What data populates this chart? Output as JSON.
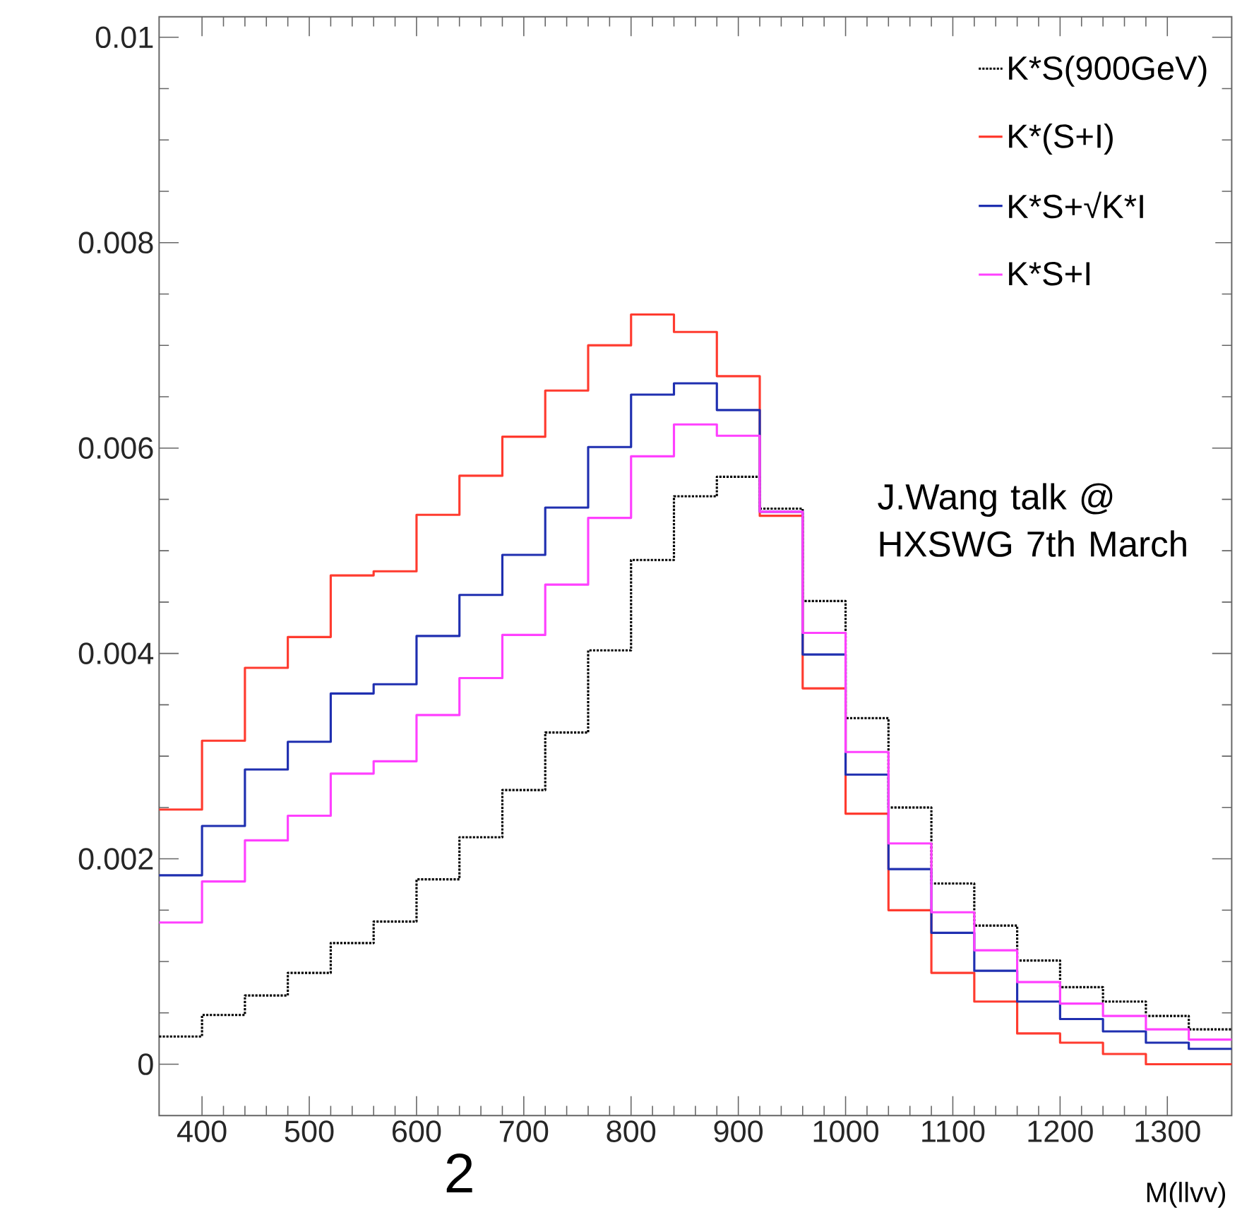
{
  "chart_data": {
    "type": "histogram",
    "xlabel": "M(llvv)",
    "bins": [
      360,
      400,
      440,
      480,
      520,
      560,
      600,
      640,
      680,
      720,
      760,
      800,
      840,
      880,
      920,
      960,
      1000,
      1040,
      1080,
      1120,
      1160,
      1200,
      1240,
      1280,
      1320,
      1360
    ],
    "series": [
      {
        "name": "K*S(900GeV)",
        "color": "#000000",
        "line_style": "dotted",
        "values": [
          0.00027,
          0.00048,
          0.00067,
          0.00089,
          0.00118,
          0.00139,
          0.0018,
          0.00221,
          0.00267,
          0.00323,
          0.00403,
          0.00491,
          0.00553,
          0.00572,
          0.00541,
          0.00451,
          0.00337,
          0.0025,
          0.00176,
          0.00135,
          0.00101,
          0.00075,
          0.00061,
          0.00047,
          0.00034
        ]
      },
      {
        "name": "K*(S+I)",
        "color": "#ff3b2f",
        "line_style": "solid",
        "values": [
          0.00248,
          0.00315,
          0.00386,
          0.00416,
          0.00476,
          0.0048,
          0.00535,
          0.00573,
          0.00611,
          0.00656,
          0.007,
          0.0073,
          0.00713,
          0.0067,
          0.00534,
          0.00366,
          0.00244,
          0.0015,
          0.00089,
          0.00061,
          0.0003,
          0.00021,
          0.0001,
          0.0,
          0.0
        ]
      },
      {
        "name": "K*S+√K*I",
        "color": "#1f2fb0",
        "line_style": "solid",
        "values": [
          0.00184,
          0.00232,
          0.00287,
          0.00314,
          0.00361,
          0.0037,
          0.00417,
          0.00457,
          0.00496,
          0.00542,
          0.00601,
          0.00652,
          0.00663,
          0.00637,
          0.00538,
          0.00399,
          0.00282,
          0.0019,
          0.00128,
          0.00091,
          0.00061,
          0.00044,
          0.00032,
          0.00021,
          0.00015
        ]
      },
      {
        "name": "K*S+I",
        "color": "#ff40ff",
        "line_style": "solid",
        "values": [
          0.00138,
          0.00178,
          0.00218,
          0.00242,
          0.00283,
          0.00295,
          0.0034,
          0.00376,
          0.00418,
          0.00467,
          0.00532,
          0.00592,
          0.00623,
          0.00612,
          0.00538,
          0.0042,
          0.00304,
          0.00215,
          0.00148,
          0.00111,
          0.0008,
          0.00059,
          0.00047,
          0.00034,
          0.00024
        ]
      }
    ],
    "xlim": [
      360,
      1360
    ],
    "ylim": [
      -0.0005,
      0.0102
    ],
    "xticks": [
      400,
      500,
      600,
      700,
      800,
      900,
      1000,
      1100,
      1200,
      1300
    ],
    "yticks": [
      0,
      0.002,
      0.004,
      0.006,
      0.008,
      0.01
    ],
    "legend": "top right",
    "annotations": [
      "J.Wang talk @ HXSWG 7th March",
      "2"
    ]
  }
}
